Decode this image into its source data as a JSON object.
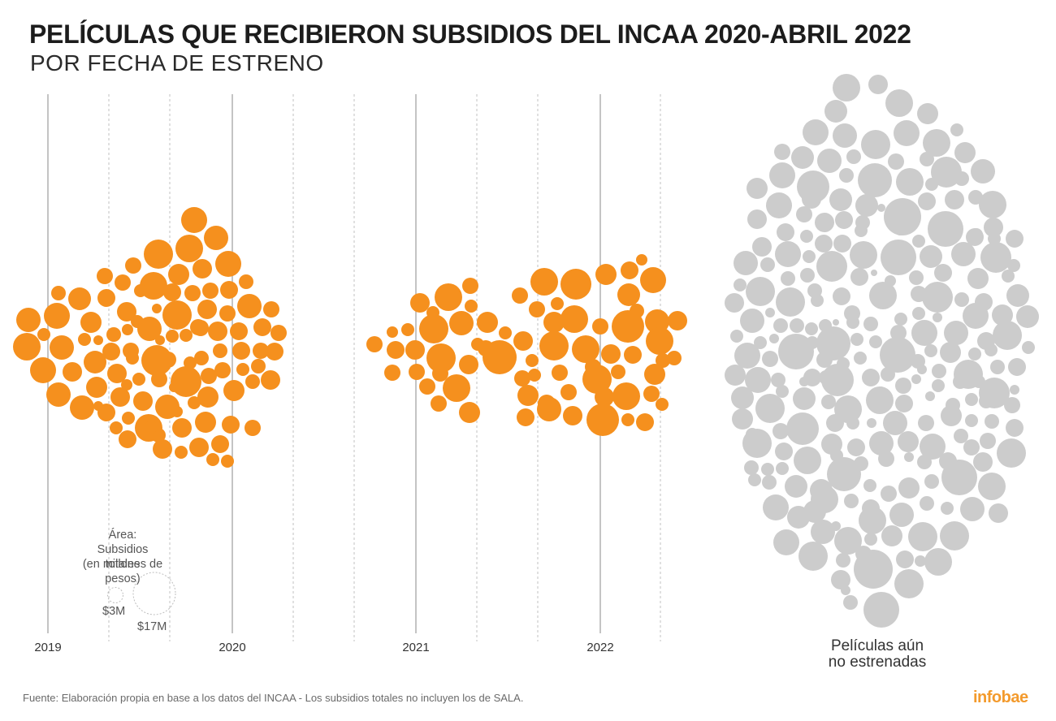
{
  "header": {
    "title": "PELÍCULAS QUE RECIBIERON SUBSIDIOS DEL INCAA 2020-ABRIL 2022",
    "subtitle": "POR FECHA DE ESTRENO"
  },
  "legend": {
    "label_line1": "Área:",
    "label_line2": "Subsidios totales",
    "label_line3": "(en millones de pesos)",
    "small_label": "$3M",
    "large_label": "$17M"
  },
  "unreleased_label": {
    "line1": "Películas aún",
    "line2": "no estrenadas"
  },
  "source": "Fuente: Elaboración propia en base a los datos del INCAA - Los subsidios totales no incluyen los de SALA.",
  "brand": "infobae",
  "colors": {
    "released": "#f5901e",
    "unreleased": "#cccccc",
    "axis": "#aaaaaa",
    "title": "#1c1c1c",
    "brand": "#f39a2c"
  },
  "chart_data": {
    "type": "scatter",
    "title": "PELÍCULAS QUE RECIBIERON SUBSIDIOS DEL INCAA 2020-ABRIL 2022",
    "subtitle": "POR FECHA DE ESTRENO",
    "encoding": "circle area = subsidios totales (millones de pesos)",
    "x_axis": {
      "ticks": [
        "2019",
        "2020",
        "2021",
        "2022"
      ],
      "grid": "solid at years, dotted at quarters"
    },
    "size_legend": [
      {
        "label": "$3M",
        "value": 3
      },
      {
        "label": "$17M",
        "value": 17
      }
    ],
    "series": [
      {
        "name": "",
        "color": "#f5901e",
        "values": [
          [
            2019.8,
            2.0
          ],
          [
            2019.9,
            1.8
          ],
          [
            2019.7,
            1.8
          ],
          [
            2019.6,
            1.6
          ],
          [
            2019.5,
            1.0
          ],
          [
            2019.9,
            1.4
          ],
          [
            2019.8,
            1.1
          ],
          [
            2019.7,
            1.1
          ],
          [
            2020.0,
            1.6
          ],
          [
            2019.3,
            0.6
          ],
          [
            2019.4,
            0.6
          ],
          [
            2019.6,
            1.1
          ],
          [
            2019.7,
            0.9
          ],
          [
            2020.1,
            0.8
          ],
          [
            2019.1,
            0.6
          ],
          [
            2019.4,
            0.5
          ],
          [
            2019.3,
            1.1
          ],
          [
            2019.6,
            0.5
          ],
          [
            2019.8,
            0.9
          ],
          [
            2020.0,
            0.6
          ],
          [
            2020.2,
            1.0
          ],
          [
            2019.5,
            0.9
          ],
          [
            2019.6,
            2.1
          ],
          [
            2019.7,
            2.6
          ],
          [
            2020.1,
            1.4
          ],
          [
            2019.2,
            1.4
          ],
          [
            2019.4,
            1.4
          ],
          [
            2019.6,
            0.4
          ],
          [
            2019.0,
            1.1
          ],
          [
            2019.9,
            1.1
          ],
          [
            2020.2,
            0.7
          ],
          [
            2018.9,
            1.0
          ],
          [
            2019.3,
            0.7
          ],
          [
            2019.4,
            0.6
          ],
          [
            2019.9,
            2.3
          ],
          [
            2020.1,
            0.7
          ],
          [
            2020.1,
            1.1
          ],
          [
            2020.2,
            1.6
          ],
          [
            2019.5,
            1.5
          ],
          [
            2019.8,
            0.8
          ],
          [
            2019.7,
            0.3
          ],
          [
            2019.2,
            0.6
          ],
          [
            2019.4,
            0.9
          ],
          [
            2019.0,
            0.9
          ],
          [
            2019.1,
            1.3
          ],
          [
            2019.5,
            2.4
          ],
          [
            2019.7,
            1.4
          ],
          [
            2019.8,
            0.8
          ],
          [
            2019.9,
            1.4
          ],
          [
            2020.0,
            1.6
          ],
          [
            2020.2,
            0.5
          ],
          [
            2019.2,
            0.7
          ],
          [
            2019.3,
            1.1
          ],
          [
            2019.4,
            0.8
          ],
          [
            2019.6,
            0.8
          ],
          [
            2020.1,
            0.8
          ],
          [
            2019.5,
            2.0
          ],
          [
            2019.6,
            1.2
          ],
          [
            2020.2,
            0.7
          ],
          [
            2019.1,
            1.3
          ],
          [
            2019.4,
            0.8
          ],
          [
            2019.6,
            0.6
          ],
          [
            2019.9,
            1.0
          ],
          [
            2020.1,
            1.6
          ],
          [
            2020.2,
            0.9
          ],
          [
            2019.3,
            1.1
          ],
          [
            2019.5,
            0.6
          ],
          [
            2019.7,
            0.9
          ],
          [
            2019.8,
            0.8
          ],
          [
            2019.9,
            0.7
          ],
          [
            2020.2,
            1.3
          ],
          [
            2019.2,
            1.0
          ],
          [
            2019.0,
            1.0
          ],
          [
            2019.9,
            1.4
          ],
          [
            2019.7,
            1.7
          ],
          [
            2019.5,
            1.8
          ],
          [
            2019.9,
            0.7
          ],
          [
            2019.8,
            0.6
          ],
          [
            2020.1,
            0.8
          ],
          [
            2020.3,
            0.7
          ],
          [
            2019.3,
            1.3
          ],
          [
            2019.4,
            0.5
          ],
          [
            2019.6,
            1.1
          ],
          [
            2019.7,
            0.6
          ],
          [
            2019.8,
            0.7
          ],
          [
            2019.9,
            1.1
          ],
          [
            2020.0,
            0.9
          ],
          [
            2020.1,
            0.7
          ],
          [
            2020.1,
            0.6
          ],
          [
            2020.2,
            0.7
          ],
          [
            2019.6,
            1.3
          ],
          [
            2019.6,
            1.0
          ],
          [
            2019.5,
            0.9
          ],
          [
            2019.6,
            0.8
          ],
          [
            2019.8,
            1.0
          ],
          [
            2019.9,
            0.9
          ],
          [
            2019.1,
            1.3
          ],
          [
            2019.4,
            0.8
          ],
          [
            2019.5,
            0.5
          ],
          [
            2019.7,
            0.6
          ],
          [
            2019.9,
            1.2
          ],
          [
            2019.6,
            0.7
          ],
          [
            2019.7,
            0.5
          ],
          [
            2019.8,
            0.9
          ],
          [
            2019.9,
            0.6
          ],
          [
            2019.4,
            0.7
          ],
          [
            2021.6,
            2.5
          ],
          [
            2021.7,
            1.3
          ],
          [
            2021.8,
            1.0
          ],
          [
            2021.7,
            0.8
          ],
          [
            2021.1,
            1.3
          ],
          [
            2021.2,
            1.7
          ],
          [
            2021.3,
            1.3
          ],
          [
            2021.4,
            0.9
          ],
          [
            2021.3,
            0.6
          ],
          [
            2021.5,
            1.0
          ],
          [
            2021.2,
            0.9
          ],
          [
            2021.2,
            0.7
          ],
          [
            2021.3,
            1.0
          ],
          [
            2021.4,
            0.6
          ],
          [
            2021.4,
            1.4
          ],
          [
            2021.1,
            1.4
          ],
          [
            2021.1,
            0.8
          ],
          [
            2020.9,
            1.1
          ],
          [
            2021.0,
            0.9
          ],
          [
            2021.0,
            1.0
          ],
          [
            2021.2,
            1.1
          ],
          [
            2021.3,
            0.8
          ],
          [
            2021.4,
            1.6
          ],
          [
            2021.0,
            0.8
          ],
          [
            2021.2,
            0.7
          ],
          [
            2021.3,
            0.7
          ],
          [
            2021.2,
            0.9
          ],
          [
            2021.3,
            1.2
          ],
          [
            2021.7,
            0.9
          ],
          [
            2021.8,
            1.5
          ],
          [
            2021.9,
            1.2
          ],
          [
            2022.0,
            1.1
          ],
          [
            2022.1,
            0.8
          ],
          [
            2022.2,
            1.2
          ],
          [
            2022.3,
            1.3
          ],
          [
            2021.8,
            1.2
          ],
          [
            2021.6,
            1.4
          ],
          [
            2021.7,
            1.6
          ],
          [
            2021.9,
            1.4
          ],
          [
            2022.0,
            1.8
          ],
          [
            2022.1,
            1.0
          ],
          [
            2022.2,
            1.5
          ],
          [
            2022.3,
            1.6
          ],
          [
            2021.6,
            1.1
          ],
          [
            2021.7,
            0.7
          ],
          [
            2021.9,
            1.1
          ],
          [
            2022.0,
            1.5
          ],
          [
            2022.1,
            0.7
          ],
          [
            2022.2,
            1.2
          ],
          [
            2022.3,
            1.1
          ],
          [
            2021.8,
            1.4
          ],
          [
            2021.7,
            0.9
          ],
          [
            2021.8,
            1.0
          ],
          [
            2022.0,
            1.0
          ],
          [
            2022.1,
            0.8
          ],
          [
            2022.2,
            0.8
          ],
          [
            2022.3,
            0.6
          ],
          [
            2021.7,
            1.1
          ],
          [
            2021.8,
            1.2
          ],
          [
            2021.9,
            1.6
          ],
          [
            2022.0,
            1.3
          ],
          [
            2022.1,
            1.1
          ],
          [
            2022.2,
            1.4
          ],
          [
            2022.3,
            2.3
          ],
          [
            2021.7,
            1.1
          ],
          [
            2021.9,
            0.8
          ],
          [
            2022.1,
            0.6
          ],
          [
            2022.2,
            0.6
          ],
          [
            2022.3,
            0.5
          ],
          [
            2021.8,
            0.6
          ],
          [
            2022.0,
            1.0
          ],
          [
            2021.8,
            1.4
          ],
          [
            2022.1,
            1.5
          ],
          [
            2022.0,
            1.2
          ],
          [
            2022.2,
            1.0
          ]
        ]
      },
      {
        "name": "",
        "color": "#cccccc",
        "label": "Películas aún no estrenadas"
      }
    ]
  }
}
